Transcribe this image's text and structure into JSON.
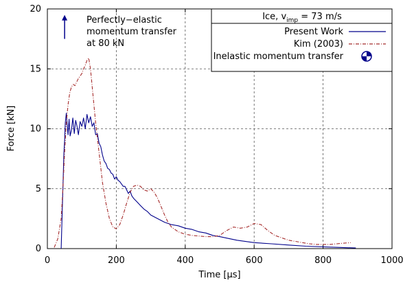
{
  "chart_data": {
    "type": "line",
    "xlabel": "Time [μs]",
    "ylabel": "Force [kN]",
    "xlim": [
      0,
      1000
    ],
    "ylim": [
      0,
      20
    ],
    "x_ticks": [
      "0",
      "200",
      "400",
      "600",
      "800",
      "1000"
    ],
    "y_ticks": [
      "0",
      "5",
      "10",
      "15",
      "20"
    ],
    "grid": "dashed",
    "legend_position": "top-right",
    "legend_title_main": "Ice, v",
    "legend_title_sub": "imp",
    "legend_title_rest": " = 73 m/s",
    "series": [
      {
        "name": "Present Work",
        "color": "#00008b",
        "style": "solid",
        "x": [
          40,
          42,
          45,
          48,
          50,
          52,
          55,
          58,
          60,
          63,
          66,
          70,
          74,
          78,
          82,
          86,
          90,
          95,
          100,
          105,
          110,
          115,
          120,
          125,
          130,
          135,
          140,
          145,
          150,
          155,
          160,
          165,
          170,
          175,
          180,
          185,
          190,
          195,
          200,
          205,
          210,
          215,
          220,
          225,
          230,
          235,
          240,
          245,
          250,
          260,
          270,
          280,
          290,
          300,
          320,
          340,
          360,
          380,
          400,
          420,
          440,
          460,
          480,
          500,
          550,
          600,
          650,
          700,
          750,
          800,
          850,
          895
        ],
        "y": [
          0,
          2,
          5,
          8,
          9,
          10.5,
          11.3,
          10.2,
          9.5,
          10.8,
          9.4,
          9.9,
          10.9,
          9.6,
          10.7,
          10.2,
          9.5,
          10.6,
          10.2,
          10.9,
          10,
          11.2,
          10.5,
          11,
          10.2,
          10.5,
          9.5,
          9.6,
          8.8,
          8.5,
          7.8,
          7.3,
          7.1,
          6.7,
          6.6,
          6.3,
          6.2,
          5.8,
          6,
          5.7,
          5.6,
          5.4,
          5.2,
          5.2,
          4.9,
          4.6,
          4.8,
          4.4,
          4.2,
          3.9,
          3.6,
          3.3,
          3.1,
          2.8,
          2.5,
          2.2,
          2,
          1.9,
          1.7,
          1.6,
          1.4,
          1.3,
          1.1,
          1,
          0.7,
          0.5,
          0.4,
          0.3,
          0.2,
          0.15,
          0.1,
          0.05
        ]
      },
      {
        "name": "Kim (2003)",
        "color": "#a52a2a",
        "style": "dash-dot",
        "x": [
          20,
          30,
          40,
          45,
          50,
          55,
          60,
          65,
          70,
          75,
          80,
          85,
          90,
          95,
          100,
          105,
          110,
          115,
          120,
          125,
          130,
          140,
          150,
          160,
          170,
          180,
          190,
          200,
          210,
          220,
          230,
          240,
          250,
          260,
          270,
          280,
          290,
          300,
          310,
          320,
          330,
          340,
          350,
          360,
          380,
          400,
          420,
          440,
          460,
          480,
          500,
          520,
          540,
          560,
          580,
          600,
          620,
          640,
          660,
          680,
          700,
          720,
          740,
          760,
          780,
          800,
          820,
          840,
          860,
          880
        ],
        "y": [
          0.1,
          0.8,
          2.5,
          5,
          8,
          10.5,
          12,
          13,
          13.5,
          13.7,
          13.6,
          13.9,
          14.2,
          14.4,
          14.6,
          15,
          15.3,
          15.7,
          15.9,
          15,
          13.5,
          10.5,
          8,
          5.5,
          3.8,
          2.5,
          1.8,
          1.65,
          2,
          2.8,
          3.8,
          4.7,
          5.2,
          5.3,
          5.2,
          4.9,
          4.8,
          5,
          4.7,
          4.2,
          3.5,
          2.8,
          2.2,
          1.8,
          1.4,
          1.2,
          1.1,
          1.05,
          1,
          1,
          1.1,
          1.5,
          1.8,
          1.7,
          1.8,
          2.1,
          2,
          1.5,
          1.1,
          0.9,
          0.7,
          0.6,
          0.5,
          0.4,
          0.35,
          0.35,
          0.35,
          0.4,
          0.45,
          0.5
        ]
      }
    ],
    "legend_inelastic_label": "Inelastic momentum transfer",
    "annotation": {
      "lines": [
        "Perfectly−elastic",
        "momentum transfer",
        "at 80 kN"
      ],
      "arrow_x": 50,
      "arrow_y_from": 17.5,
      "arrow_y_to": 19.5
    }
  }
}
